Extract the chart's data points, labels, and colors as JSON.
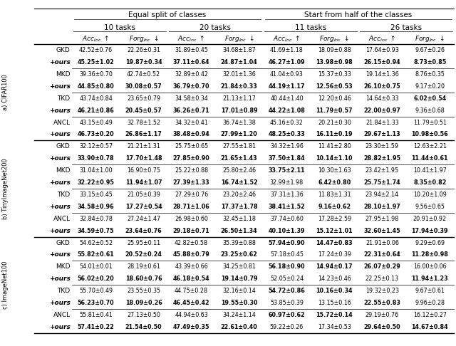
{
  "rows": {
    "CIFAR100": [
      [
        "GKD",
        "42.52±0.76",
        "22.26±0.31",
        "31.89±0.45",
        "34.68±1.87",
        "41.69±1.18",
        "18.09±0.88",
        "17.64±0.93",
        "9.67±0.26"
      ],
      [
        "+ours",
        "45.25±1.02",
        "19.87±0.34",
        "37.11±0.64",
        "24.87±1.04",
        "46.27±1.09",
        "13.98±0.98",
        "26.15±0.94",
        "8.73±0.85"
      ],
      [
        "MKD",
        "39.36±0.70",
        "42.74±0.52",
        "32.89±0.42",
        "32.01±1.36",
        "41.04±0.93",
        "15.37±0.33",
        "19.14±1.36",
        "8.76±0.35"
      ],
      [
        "+ours",
        "44.85±0.80",
        "30.08±0.57",
        "36.79±0.70",
        "21.84±0.33",
        "44.19±1.17",
        "12.56±0.53",
        "26.10±0.75",
        "9.17±0.20"
      ],
      [
        "TKD",
        "43.74±0.84",
        "23.65±0.79",
        "34.58±0.34",
        "21.13±1.17",
        "40.44±1.40",
        "12.20±0.46",
        "14.64±0.33",
        "6.02±0.54"
      ],
      [
        "+ours",
        "46.21±0.86",
        "20.45±0.57",
        "36.26±0.71",
        "17.01±0.89",
        "44.22±1.08",
        "11.79±0.57",
        "22.00±0.97",
        "9.36±0.68"
      ],
      [
        "ANCL",
        "43.15±0.49",
        "32.78±1.52",
        "34.32±0.41",
        "36.74±1.38",
        "45.16±0.32",
        "20.21±0.30",
        "21.84±1.33",
        "11.79±0.51"
      ],
      [
        "+ours",
        "46.73±0.20",
        "26.86±1.17",
        "38.48±0.94",
        "27.99±1.20",
        "48.25±0.33",
        "16.11±0.19",
        "29.67±1.13",
        "10.98±0.56"
      ]
    ],
    "TinyImageNet200": [
      [
        "GKD",
        "32.12±0.57",
        "21.21±1.31",
        "25.75±0.65",
        "27.55±1.81",
        "34.32±1.96",
        "11.41±2.80",
        "23.30±1.59",
        "12.63±2.21"
      ],
      [
        "+ours",
        "33.90±0.78",
        "17.70±1.48",
        "27.85±0.90",
        "21.65±1.43",
        "37.50±1.84",
        "10.14±1.10",
        "28.82±1.95",
        "11.44±0.61"
      ],
      [
        "MKD",
        "31.04±1.00",
        "16.90±0.75",
        "25.22±0.88",
        "25.80±2.46",
        "33.75±2.11",
        "10.30±1.63",
        "23.42±1.95",
        "10.41±1.97"
      ],
      [
        "+ours",
        "32.22±0.95",
        "11.94±1.07",
        "27.39±1.33",
        "16.74±1.52",
        "32.99±1.98",
        "6.42±0.80",
        "25.75±1.74",
        "8.35±0.82"
      ],
      [
        "TKD",
        "33.15±0.45",
        "21.05±0.39",
        "27.29±0.76",
        "23.20±2.46",
        "37.31±1.36",
        "11.83±1.31",
        "23.94±2.14",
        "10.20±1.09"
      ],
      [
        "+ours",
        "34.58±0.96",
        "17.27±0.54",
        "28.71±1.06",
        "17.37±1.78",
        "38.41±1.52",
        "9.16±0.62",
        "28.10±1.97",
        "9.56±0.65"
      ],
      [
        "ANCL",
        "32.84±0.78",
        "27.24±1.47",
        "26.98±0.60",
        "32.45±1.18",
        "37.74±0.60",
        "17.28±2.59",
        "27.95±1.98",
        "20.91±0.92"
      ],
      [
        "+ours",
        "34.59±0.75",
        "23.64±0.76",
        "29.18±0.71",
        "26.50±1.34",
        "40.10±1.39",
        "15.12±1.01",
        "32.60±1.45",
        "17.94±0.39"
      ]
    ],
    "ImageNet100": [
      [
        "GKD",
        "54.62±0.52",
        "25.95±0.11",
        "42.82±0.58",
        "35.39±0.88",
        "57.94±0.90",
        "14.47±0.83",
        "21.91±0.06",
        "9.29±0.69"
      ],
      [
        "+ours",
        "55.82±0.61",
        "20.52±0.24",
        "45.88±0.79",
        "23.25±0.62",
        "57.18±0.45",
        "17.24±0.39",
        "22.31±0.64",
        "11.28±0.98"
      ],
      [
        "MKD",
        "54.01±0.01",
        "28.19±0.61",
        "43.39±0.66",
        "34.25±0.81",
        "56.18±0.90",
        "14.94±0.17",
        "26.07±0.29",
        "16.00±0.06"
      ],
      [
        "+ours",
        "56.02±0.20",
        "18.60±0.76",
        "46.18±0.54",
        "19.14±0.79",
        "52.05±0.24",
        "14.23±0.46",
        "22.25±0.13",
        "11.94±1.23"
      ],
      [
        "TKD",
        "55.70±0.49",
        "23.55±0.35",
        "44.75±0.28",
        "32.16±0.14",
        "54.72±0.86",
        "10.16±0.34",
        "19.32±0.23",
        "9.67±0.61"
      ],
      [
        "+ours",
        "56.23±0.70",
        "18.09±0.26",
        "46.45±0.42",
        "19.55±0.30",
        "53.85±0.39",
        "13.15±0.16",
        "22.55±0.83",
        "9.96±0.28"
      ],
      [
        "ANCL",
        "55.81±0.41",
        "27.13±0.50",
        "44.94±0.63",
        "34.24±1.14",
        "60.97±0.62",
        "15.72±0.14",
        "29.19±0.76",
        "16.12±0.27"
      ],
      [
        "+ours",
        "57.41±0.22",
        "21.54±0.50",
        "47.49±0.35",
        "22.61±0.40",
        "59.22±0.26",
        "17.34±0.53",
        "29.64±0.50",
        "14.67±0.84"
      ]
    ]
  },
  "bold": {
    "CIFAR100": [
      [
        false,
        false,
        false,
        false,
        false,
        false,
        false,
        false
      ],
      [
        true,
        true,
        true,
        true,
        true,
        true,
        true,
        true
      ],
      [
        false,
        false,
        false,
        false,
        false,
        false,
        false,
        false
      ],
      [
        true,
        true,
        true,
        true,
        true,
        true,
        true,
        false
      ],
      [
        false,
        false,
        false,
        false,
        false,
        false,
        false,
        true
      ],
      [
        true,
        true,
        true,
        true,
        true,
        true,
        true,
        false
      ],
      [
        false,
        false,
        false,
        false,
        false,
        false,
        false,
        false
      ],
      [
        true,
        true,
        true,
        true,
        true,
        true,
        true,
        true
      ]
    ],
    "TinyImageNet200": [
      [
        false,
        false,
        false,
        false,
        false,
        false,
        false,
        false
      ],
      [
        true,
        true,
        true,
        true,
        true,
        true,
        true,
        true
      ],
      [
        false,
        false,
        false,
        false,
        true,
        false,
        false,
        false
      ],
      [
        true,
        true,
        true,
        true,
        false,
        true,
        true,
        true
      ],
      [
        false,
        false,
        false,
        false,
        false,
        false,
        false,
        false
      ],
      [
        true,
        true,
        true,
        true,
        true,
        true,
        true,
        false
      ],
      [
        false,
        false,
        false,
        false,
        false,
        false,
        false,
        false
      ],
      [
        true,
        true,
        true,
        true,
        true,
        true,
        true,
        true
      ]
    ],
    "ImageNet100": [
      [
        false,
        false,
        false,
        false,
        true,
        true,
        false,
        false
      ],
      [
        true,
        true,
        true,
        true,
        false,
        false,
        true,
        true
      ],
      [
        false,
        false,
        false,
        false,
        true,
        true,
        true,
        false
      ],
      [
        true,
        true,
        true,
        true,
        false,
        false,
        false,
        true
      ],
      [
        false,
        false,
        false,
        false,
        true,
        true,
        false,
        false
      ],
      [
        true,
        true,
        true,
        true,
        false,
        false,
        true,
        false
      ],
      [
        false,
        false,
        false,
        false,
        true,
        true,
        false,
        false
      ],
      [
        true,
        true,
        true,
        true,
        false,
        false,
        true,
        true
      ]
    ]
  },
  "dataset_names": [
    "CIFAR100",
    "TinyImageNet200",
    "ImageNet100"
  ],
  "dataset_labels": [
    "a) CIFAR100",
    "b) TinyImageNet200",
    "c) ImageNet100"
  ],
  "task_labels": [
    "10 tasks",
    "20 tasks",
    "11 tasks",
    "26 tasks"
  ],
  "header1_left": "Equal split of classes",
  "header1_right": "Start from half of the classes"
}
